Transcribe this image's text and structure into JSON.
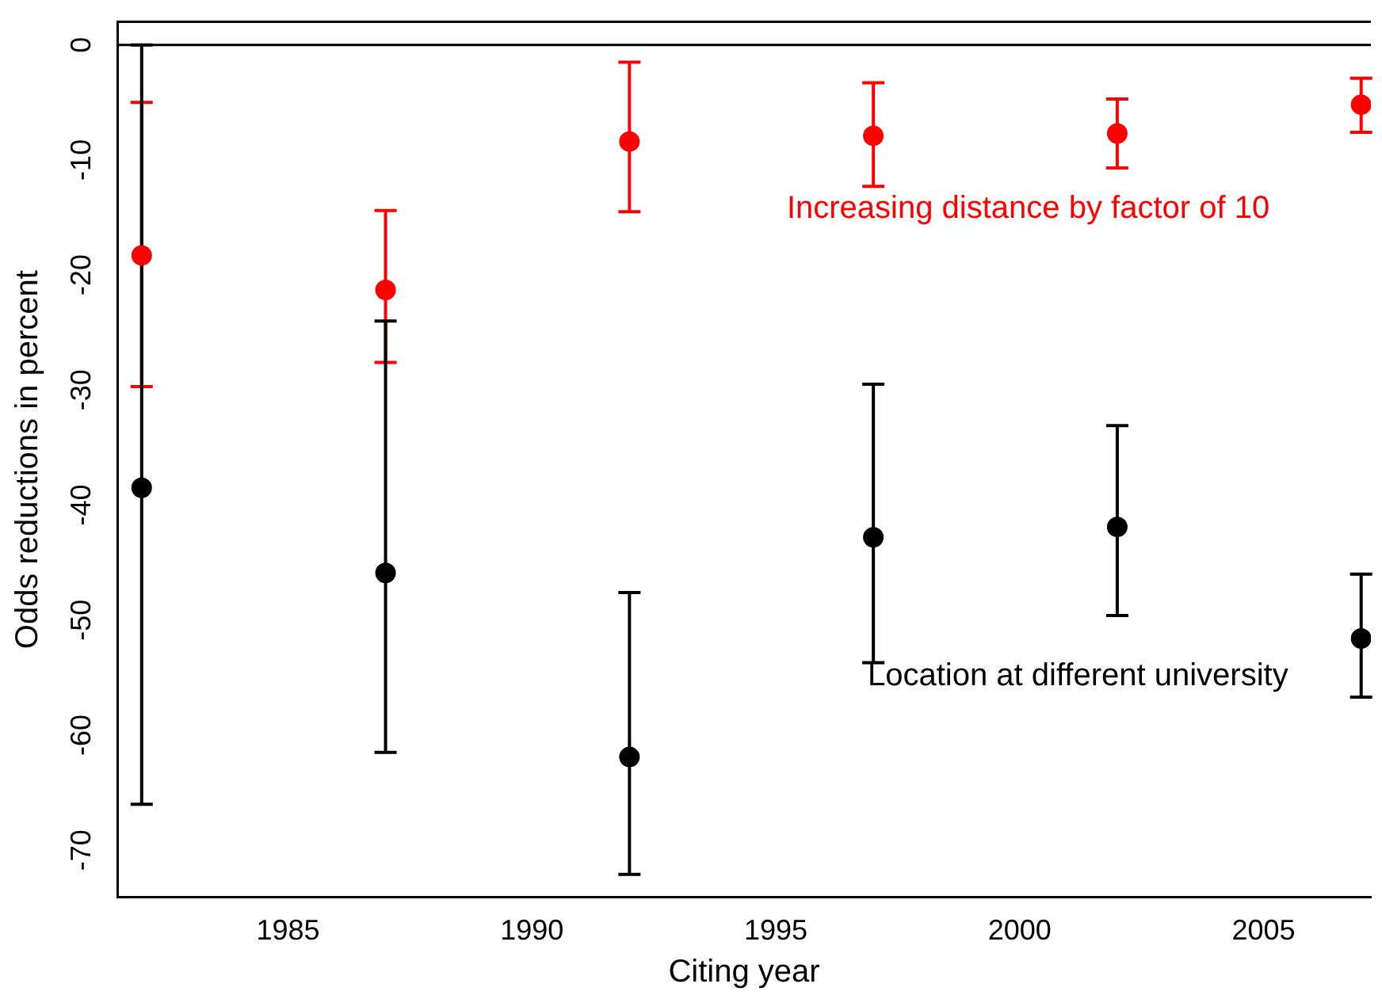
{
  "chart_data": {
    "type": "scatter",
    "xlabel": "Citing year",
    "ylabel": "Odds reductions in percent",
    "xlim": [
      1981.5,
      2007.2
    ],
    "xticks": [
      1985,
      1990,
      1995,
      2000,
      2005
    ],
    "ylim": [
      -74.1,
      2.0
    ],
    "yticks": [
      0,
      -10,
      -20,
      -30,
      -40,
      -50,
      -60,
      -70
    ],
    "grid": false,
    "legend": false,
    "marker": "circle",
    "series": [
      {
        "color": "#ff0000",
        "x": [
          1982,
          1987,
          1992,
          1997,
          2002,
          2007
        ],
        "values": [
          -18.3,
          -21.3,
          -8.4,
          -7.9,
          -7.7,
          -5.2
        ],
        "errors": [
          [
            -29.7,
            -5.0
          ],
          [
            -27.6,
            -14.4
          ],
          [
            -14.5,
            -1.5
          ],
          [
            -12.3,
            -3.3
          ],
          [
            -10.7,
            -4.7
          ],
          [
            -7.6,
            -2.9
          ]
        ]
      },
      {
        "color": "#000000",
        "x": [
          1982,
          1987,
          1992,
          1997,
          2002,
          2007
        ],
        "values": [
          -38.5,
          -45.9,
          -61.9,
          -42.8,
          -41.9,
          -51.6
        ],
        "errors": [
          [
            -66.0,
            0
          ],
          [
            -61.5,
            -24.0
          ],
          [
            -72.1,
            -47.6
          ],
          [
            -53.7,
            -29.5
          ],
          [
            -49.6,
            -33.1
          ],
          [
            -56.7,
            -46.0
          ]
        ]
      }
    ],
    "ref_lines": [
      {
        "axis": "y",
        "value": 0,
        "color": "#000000"
      }
    ],
    "annotations": [
      "Increasing distance by factor of 10",
      "Location at different university"
    ]
  }
}
